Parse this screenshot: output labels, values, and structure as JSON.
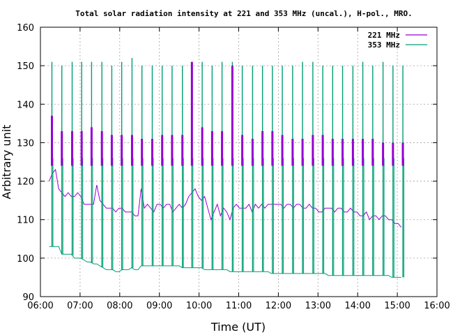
{
  "chart_data": {
    "type": "line",
    "title": "Total solar radiation intensity at 221 and 353 MHz (uncal.), H-pol., MRO.",
    "xlabel": "Time (UT)",
    "ylabel": "Arbitrary unit",
    "xlim": [
      6.0,
      16.0
    ],
    "ylim": [
      90,
      160
    ],
    "x_ticks": [
      "06:00",
      "07:00",
      "08:00",
      "09:00",
      "10:00",
      "11:00",
      "12:00",
      "13:00",
      "14:00",
      "15:00",
      "16:00"
    ],
    "y_ticks": [
      90,
      100,
      110,
      120,
      130,
      140,
      150,
      160
    ],
    "grid": true,
    "legend_position": "top-right",
    "series": [
      {
        "name": "221 MHz",
        "color": "#9400d3",
        "x": [
          6.22,
          6.3,
          6.38,
          6.46,
          6.54,
          6.62,
          6.7,
          6.78,
          6.86,
          6.94,
          7.02,
          7.1,
          7.18,
          7.26,
          7.34,
          7.42,
          7.5,
          7.58,
          7.66,
          7.74,
          7.82,
          7.9,
          7.98,
          8.06,
          8.14,
          8.22,
          8.3,
          8.38,
          8.46,
          8.54,
          8.62,
          8.7,
          8.78,
          8.86,
          8.94,
          9.02,
          9.1,
          9.18,
          9.26,
          9.34,
          9.42,
          9.5,
          9.58,
          9.66,
          9.74,
          9.82,
          9.9,
          9.98,
          10.06,
          10.14,
          10.22,
          10.3,
          10.38,
          10.46,
          10.54,
          10.62,
          10.7,
          10.78,
          10.86,
          10.94,
          11.02,
          11.1,
          11.18,
          11.26,
          11.34,
          11.42,
          11.5,
          11.58,
          11.66,
          11.74,
          11.82,
          11.9,
          11.98,
          12.06,
          12.14,
          12.22,
          12.3,
          12.38,
          12.46,
          12.54,
          12.62,
          12.7,
          12.78,
          12.86,
          12.94,
          13.02,
          13.1,
          13.18,
          13.26,
          13.34,
          13.42,
          13.5,
          13.58,
          13.66,
          13.74,
          13.82,
          13.9,
          13.98,
          14.06,
          14.14,
          14.22,
          14.3,
          14.38,
          14.46,
          14.54,
          14.62,
          14.7,
          14.78,
          14.86,
          14.94,
          15.02,
          15.1
        ],
        "y": [
          120,
          122,
          123,
          118,
          117,
          116,
          117,
          116,
          116,
          117,
          116,
          114,
          114,
          114,
          114,
          119,
          115,
          114,
          113,
          113,
          113,
          112,
          113,
          113,
          112,
          112,
          112,
          111,
          111,
          118,
          113,
          114,
          113,
          112,
          114,
          114,
          113,
          114,
          114,
          112,
          113,
          114,
          113,
          114,
          116,
          117,
          118,
          116,
          115,
          116,
          113,
          110,
          112,
          114,
          111,
          113,
          112,
          110,
          113,
          114,
          113,
          113,
          113,
          114,
          112,
          114,
          113,
          114,
          113,
          114,
          114,
          114,
          114,
          114,
          113,
          114,
          114,
          113,
          114,
          114,
          113,
          113,
          114,
          113,
          113,
          112,
          112,
          113,
          113,
          113,
          112,
          113,
          113,
          112,
          112,
          113,
          112,
          112,
          111,
          111,
          112,
          110,
          111,
          111,
          110,
          111,
          111,
          110,
          110,
          109,
          109,
          108
        ]
      },
      {
        "name": "353 MHz",
        "color": "#009e73",
        "x": [
          6.22,
          6.3,
          6.38,
          6.46,
          6.54,
          6.62,
          6.7,
          6.78,
          6.86,
          6.94,
          7.02,
          7.1,
          7.18,
          7.26,
          7.34,
          7.42,
          7.5,
          7.58,
          7.66,
          7.74,
          7.82,
          7.9,
          7.98,
          8.06,
          8.14,
          8.22,
          8.3,
          8.38,
          8.46,
          8.54,
          8.62,
          8.7,
          8.78,
          8.86,
          8.94,
          9.02,
          9.1,
          9.18,
          9.26,
          9.34,
          9.42,
          9.5,
          9.58,
          9.66,
          9.74,
          9.82,
          9.9,
          9.98,
          10.06,
          10.14,
          10.22,
          10.3,
          10.38,
          10.46,
          10.54,
          10.62,
          10.7,
          10.78,
          10.86,
          10.94,
          11.02,
          11.1,
          11.18,
          11.26,
          11.34,
          11.42,
          11.5,
          11.58,
          11.66,
          11.74,
          11.82,
          11.9,
          11.98,
          12.06,
          12.14,
          12.22,
          12.3,
          12.38,
          12.46,
          12.54,
          12.62,
          12.7,
          12.78,
          12.86,
          12.94,
          13.02,
          13.1,
          13.18,
          13.26,
          13.34,
          13.42,
          13.5,
          13.58,
          13.66,
          13.74,
          13.82,
          13.9,
          13.98,
          14.06,
          14.14,
          14.22,
          14.3,
          14.38,
          14.46,
          14.54,
          14.62,
          14.7,
          14.78,
          14.86,
          14.94,
          15.02,
          15.1
        ],
        "y": [
          103,
          103,
          103,
          103,
          101,
          101,
          101,
          101,
          100,
          100,
          100,
          99.5,
          99,
          99,
          98.5,
          98.5,
          98,
          97.5,
          97,
          97,
          97,
          96.5,
          96.5,
          97,
          97,
          97,
          97.5,
          97,
          97,
          98,
          98,
          98,
          98,
          98,
          98,
          98,
          98,
          98,
          98,
          98,
          98,
          98,
          97.5,
          97.5,
          97.5,
          97.5,
          97.5,
          97.5,
          97.5,
          97,
          97,
          97,
          97,
          97,
          97,
          97,
          97,
          96.5,
          96.5,
          96.5,
          96.5,
          96.5,
          96.5,
          96.5,
          96.5,
          96.5,
          96.5,
          96.5,
          96.5,
          96.5,
          96,
          96,
          96,
          96,
          96,
          96,
          96,
          96,
          96,
          96,
          96,
          96,
          96,
          96,
          96,
          96,
          96,
          96,
          95.5,
          95.5,
          95.5,
          95.5,
          95.5,
          95.5,
          95.5,
          95.5,
          95.5,
          95.5,
          95.5,
          95.5,
          95.5,
          95.5,
          95.5,
          95.5,
          95.5,
          95.5,
          95.5,
          95.5,
          95,
          95,
          95,
          95
        ]
      }
    ],
    "calibration_spikes": {
      "times": [
        6.29,
        6.54,
        6.8,
        7.04,
        7.29,
        7.55,
        7.8,
        8.05,
        8.31,
        8.56,
        8.82,
        9.07,
        9.32,
        9.58,
        9.82,
        10.08,
        10.33,
        10.58,
        10.84,
        11.09,
        11.35,
        11.6,
        11.85,
        12.1,
        12.36,
        12.61,
        12.87,
        13.12,
        13.37,
        13.62,
        13.88,
        14.13,
        14.38,
        14.64,
        14.89,
        15.14
      ],
      "peak_353": [
        151,
        150,
        151,
        151,
        151,
        151,
        150,
        151,
        152,
        150,
        150,
        150,
        150,
        150,
        150,
        151,
        150,
        151,
        151,
        150,
        150,
        150,
        150,
        150,
        150,
        151,
        151,
        150,
        150,
        150,
        150,
        151,
        150,
        151,
        150,
        150
      ],
      "peak_221": [
        137,
        133,
        133,
        133,
        134,
        133,
        132,
        132,
        132,
        131,
        131,
        132,
        132,
        132,
        151,
        134,
        133,
        133,
        150,
        132,
        131,
        133,
        133,
        132,
        131,
        131,
        132,
        132,
        131,
        131,
        131,
        131,
        131,
        130,
        130,
        130
      ],
      "plateau_221": 124,
      "plateau_353": 126
    }
  }
}
